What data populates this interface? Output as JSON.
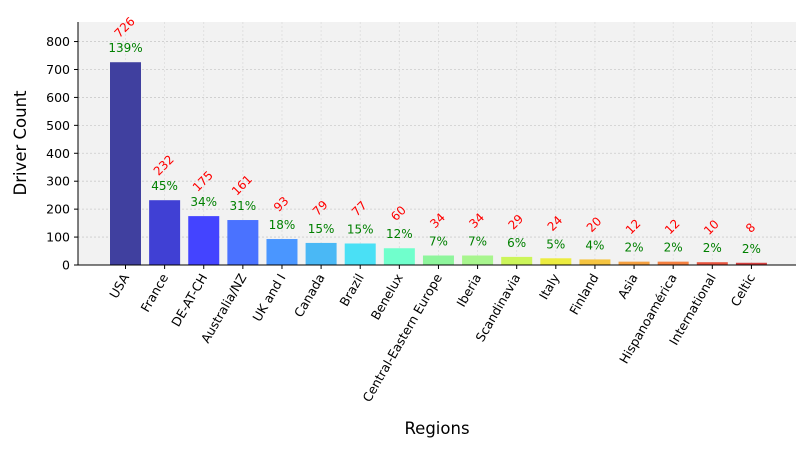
{
  "chart_data": {
    "type": "bar",
    "title": "",
    "xlabel": "Regions",
    "ylabel": "Driver Count",
    "ylim": [
      0,
      870
    ],
    "yticks": [
      0,
      100,
      200,
      300,
      400,
      500,
      600,
      700,
      800
    ],
    "grid": true,
    "categories": [
      "USA",
      "France",
      "DE-AT-CH",
      "Australia/NZ",
      "UK and I",
      "Canada",
      "Brazil",
      "Benelux",
      "Central-Eastern Europe",
      "Iberia",
      "Scandinavia",
      "Italy",
      "Finland",
      "Asia",
      "Hispanoamérica",
      "International",
      "Celtic"
    ],
    "values": [
      726,
      232,
      175,
      161,
      93,
      79,
      77,
      60,
      34,
      34,
      29,
      24,
      20,
      12,
      12,
      10,
      8
    ],
    "count_labels": [
      "726",
      "232",
      "175",
      "161",
      "93",
      "79",
      "77",
      "60",
      "34",
      "34",
      "29",
      "24",
      "20",
      "12",
      "12",
      "10",
      "8"
    ],
    "percent_labels": [
      "139%",
      "45%",
      "34%",
      "31%",
      "18%",
      "15%",
      "15%",
      "12%",
      "7%",
      "7%",
      "6%",
      "5%",
      "4%",
      "2%",
      "2%",
      "2%",
      "2%"
    ],
    "bar_colors": [
      "#40409f",
      "#4040d4",
      "#4444ff",
      "#4a72ff",
      "#4a96ff",
      "#4ab8f5",
      "#4ae0f5",
      "#70ffcc",
      "#8ef59c",
      "#a8f58e",
      "#ccf55a",
      "#ecec40",
      "#f5c440",
      "#f5a040",
      "#f58040",
      "#e85540",
      "#d44040"
    ],
    "count_color": "#ff0000",
    "percent_color": "#008000",
    "plot_background": "#f2f2f2"
  }
}
